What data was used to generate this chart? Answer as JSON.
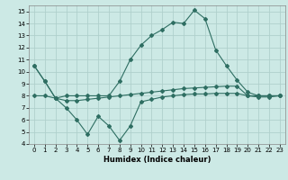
{
  "background_color": "#cce9e5",
  "line_color": "#2e6e62",
  "grid_color": "#b0d0cc",
  "xlabel": "Humidex (Indice chaleur)",
  "xlim": [
    -0.5,
    23.5
  ],
  "ylim": [
    4,
    15.5
  ],
  "xticks": [
    0,
    1,
    2,
    3,
    4,
    5,
    6,
    7,
    8,
    9,
    10,
    11,
    12,
    13,
    14,
    15,
    16,
    17,
    18,
    19,
    20,
    21,
    22,
    23
  ],
  "yticks": [
    4,
    5,
    6,
    7,
    8,
    9,
    10,
    11,
    12,
    13,
    14,
    15
  ],
  "line1_x": [
    0,
    1,
    2,
    3,
    4,
    5,
    6,
    7,
    8,
    9,
    10,
    11,
    12,
    13,
    14,
    15,
    16,
    17,
    18,
    19,
    20,
    21,
    22,
    23
  ],
  "line1_y": [
    10.5,
    9.2,
    7.8,
    8.0,
    8.0,
    8.0,
    8.0,
    8.0,
    9.2,
    11.0,
    12.2,
    13.0,
    13.5,
    14.1,
    14.0,
    15.1,
    14.4,
    11.8,
    10.5,
    9.3,
    8.3,
    8.0,
    8.0,
    8.0
  ],
  "line2_x": [
    0,
    1,
    2,
    3,
    4,
    5,
    6,
    7,
    8,
    9,
    10,
    11,
    12,
    13,
    14,
    15,
    16,
    17,
    18,
    19,
    20,
    21,
    22,
    23
  ],
  "line2_y": [
    8.0,
    8.0,
    7.8,
    7.6,
    7.6,
    7.7,
    7.8,
    7.9,
    8.0,
    8.1,
    8.2,
    8.3,
    8.4,
    8.5,
    8.6,
    8.65,
    8.7,
    8.75,
    8.8,
    8.8,
    8.0,
    8.0,
    8.0,
    8.0
  ],
  "line3_x": [
    0,
    1,
    2,
    3,
    4,
    5,
    6,
    7,
    8,
    9,
    10,
    11,
    12,
    13,
    14,
    15,
    16,
    17,
    18,
    19,
    20,
    21,
    22,
    23
  ],
  "line3_y": [
    10.5,
    9.2,
    7.8,
    7.0,
    6.0,
    4.8,
    6.3,
    5.5,
    4.3,
    5.5,
    7.5,
    7.7,
    7.9,
    8.0,
    8.1,
    8.15,
    8.15,
    8.2,
    8.2,
    8.2,
    8.0,
    7.9,
    7.9,
    8.0
  ],
  "marker": "D",
  "markersize": 2,
  "linewidth": 0.8,
  "tick_fontsize": 5.0,
  "xlabel_fontsize": 6.0
}
